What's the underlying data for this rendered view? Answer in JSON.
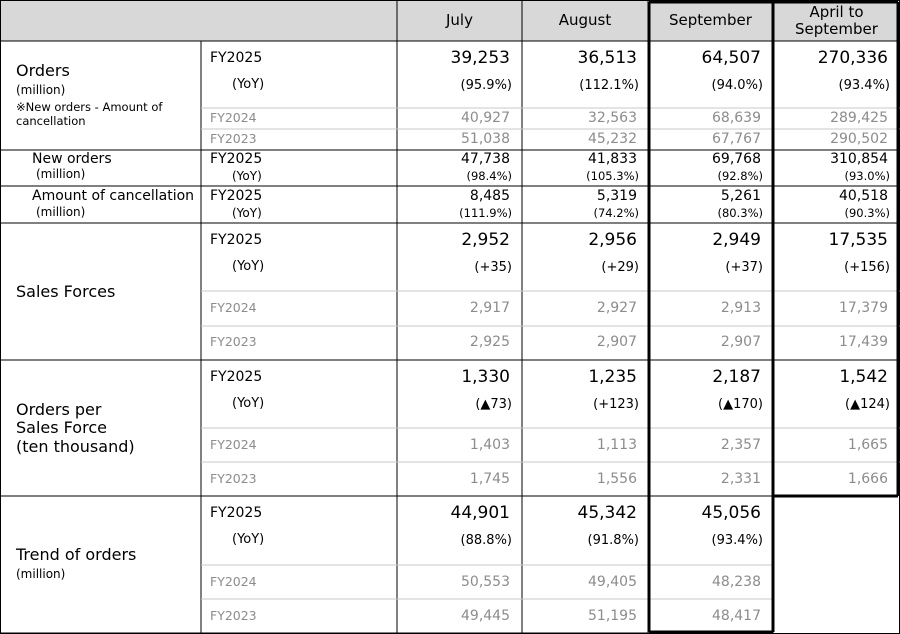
{
  "header": {
    "col_july": "July",
    "col_august": "August",
    "col_september": "September",
    "col_cumulative": "April to September"
  },
  "orders": {
    "label": "Orders",
    "unit": "(million)",
    "note": "※New orders - Amount of cancellation",
    "fy2025": {
      "year": "FY2025",
      "july": "39,253",
      "august": "36,513",
      "september": "64,507",
      "cumulative": "270,336"
    },
    "yoy": {
      "label": "(YoY)",
      "july": "(95.9%)",
      "august": "(112.1%)",
      "september": "(94.0%)",
      "cumulative": "(93.4%)"
    },
    "fy2024": {
      "year": "FY2024",
      "july": "40,927",
      "august": "32,563",
      "september": "68,639",
      "cumulative": "289,425"
    },
    "fy2023": {
      "year": "FY2023",
      "july": "51,038",
      "august": "45,232",
      "september": "67,767",
      "cumulative": "290,502"
    },
    "new_orders": {
      "label": "New orders",
      "unit": "(million)",
      "year": "FY2025",
      "yoy_label": "(YoY)",
      "july": "47,738",
      "august": "41,833",
      "september": "69,768",
      "cumulative": "310,854",
      "july_yoy": "(98.4%)",
      "august_yoy": "(105.3%)",
      "september_yoy": "(92.8%)",
      "cumulative_yoy": "(93.0%)"
    },
    "cancellation": {
      "label": "Amount of cancellation",
      "unit": "(million)",
      "year": "FY2025",
      "yoy_label": "(YoY)",
      "july": "8,485",
      "august": "5,319",
      "september": "5,261",
      "cumulative": "40,518",
      "july_yoy": "(111.9%)",
      "august_yoy": "(74.2%)",
      "september_yoy": "(80.3%)",
      "cumulative_yoy": "(90.3%)"
    }
  },
  "sales_forces": {
    "label": "Sales Forces",
    "fy2025": {
      "year": "FY2025",
      "july": "2,952",
      "august": "2,956",
      "september": "2,949",
      "cumulative": "17,535"
    },
    "yoy": {
      "label": "(YoY)",
      "july": "(+35)",
      "august": "(+29)",
      "september": "(+37)",
      "cumulative": "(+156)"
    },
    "fy2024": {
      "year": "FY2024",
      "july": "2,917",
      "august": "2,927",
      "september": "2,913",
      "cumulative": "17,379"
    },
    "fy2023": {
      "year": "FY2023",
      "july": "2,925",
      "august": "2,907",
      "september": "2,907",
      "cumulative": "17,439"
    }
  },
  "orders_per_sf": {
    "label_line1": "Orders per",
    "label_line2": "Sales Force",
    "label_line3": "(ten thousand)",
    "fy2025": {
      "year": "FY2025",
      "july": "1,330",
      "august": "1,235",
      "september": "2,187",
      "cumulative": "1,542"
    },
    "yoy": {
      "label": "(YoY)",
      "july": "(▲73)",
      "august": "(+123)",
      "september": "(▲170)",
      "cumulative": "(▲124)"
    },
    "fy2024": {
      "year": "FY2024",
      "july": "1,403",
      "august": "1,113",
      "september": "2,357",
      "cumulative": "1,665"
    },
    "fy2023": {
      "year": "FY2023",
      "july": "1,745",
      "august": "1,556",
      "september": "2,331",
      "cumulative": "1,666"
    }
  },
  "trend": {
    "label": "Trend of orders",
    "unit": "(million)",
    "fy2025": {
      "year": "FY2025",
      "july": "44,901",
      "august": "45,342",
      "september": "45,056"
    },
    "yoy": {
      "label": "(YoY)",
      "july": "(88.8%)",
      "august": "(91.8%)",
      "september": "(93.4%)"
    },
    "fy2024": {
      "year": "FY2024",
      "july": "50,553",
      "august": "49,405",
      "september": "48,238"
    },
    "fy2023": {
      "year": "FY2023",
      "july": "49,445",
      "august": "51,195",
      "september": "48,417"
    }
  }
}
